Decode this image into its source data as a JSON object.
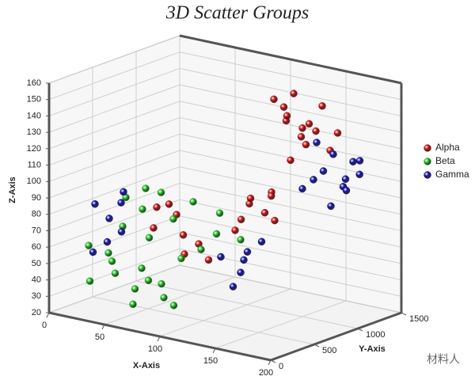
{
  "chart_data": {
    "type": "scatter3d",
    "title": "3D Scatter Groups",
    "x_label": "X-Axis",
    "y_label": "Y-Axis",
    "z_label": "Z-Axis",
    "xlim": [
      0,
      200
    ],
    "xticks": [
      0,
      50,
      100,
      150,
      200
    ],
    "ylim": [
      0,
      1500
    ],
    "yticks": [
      0,
      500,
      1000,
      1500
    ],
    "zlim": [
      20,
      160
    ],
    "zticks": [
      20,
      30,
      40,
      50,
      60,
      70,
      80,
      90,
      100,
      110,
      120,
      130,
      140,
      150,
      160
    ],
    "grid": true,
    "legend": "right",
    "watermark": "材料人",
    "series": [
      {
        "name": "Alpha",
        "color": "#cc1111",
        "x": [
          140,
          145,
          150,
          155,
          160,
          150,
          165,
          170,
          145,
          160,
          175,
          155,
          170,
          140,
          110,
          120,
          115,
          125,
          105,
          130,
          118,
          112,
          50,
          60,
          55,
          70,
          65,
          80,
          75,
          85
        ],
        "y": [
          800,
          850,
          900,
          750,
          950,
          1000,
          850,
          900,
          1050,
          1100,
          1000,
          800,
          1150,
          950,
          900,
          950,
          850,
          1000,
          800,
          900,
          1050,
          780,
          600,
          700,
          500,
          650,
          550,
          700,
          600,
          750
        ],
        "z": [
          155,
          150,
          158,
          145,
          140,
          135,
          130,
          138,
          128,
          148,
          125,
          120,
          132,
          142,
          85,
          80,
          90,
          75,
          70,
          95,
          88,
          78,
          80,
          75,
          70,
          65,
          85,
          60,
          55,
          50
        ]
      },
      {
        "name": "Beta",
        "color": "#22bb22",
        "x": [
          20,
          30,
          25,
          40,
          35,
          50,
          45,
          60,
          55,
          70,
          65,
          80,
          75,
          90,
          85,
          100,
          95,
          40,
          30,
          60,
          50,
          70,
          110,
          45,
          80
        ],
        "y": [
          200,
          300,
          150,
          250,
          400,
          350,
          500,
          300,
          450,
          400,
          600,
          500,
          700,
          600,
          350,
          650,
          750,
          600,
          500,
          200,
          650,
          250,
          800,
          150,
          300
        ],
        "z": [
          60,
          55,
          40,
          45,
          70,
          35,
          80,
          50,
          65,
          40,
          75,
          55,
          85,
          60,
          30,
          70,
          80,
          90,
          85,
          30,
          88,
          45,
          65,
          55,
          35
        ]
      },
      {
        "name": "Gamma",
        "color": "#1111aa",
        "x": [
          165,
          170,
          160,
          175,
          180,
          155,
          185,
          170,
          190,
          160,
          150,
          178,
          10,
          15,
          20,
          25,
          10,
          30,
          20,
          100,
          110,
          120,
          105,
          115,
          125
        ],
        "y": [
          1050,
          1100,
          1000,
          1150,
          1200,
          1100,
          1050,
          1250,
          1150,
          1200,
          1000,
          1300,
          400,
          500,
          600,
          350,
          700,
          450,
          250,
          700,
          800,
          750,
          900,
          650,
          850
        ],
        "z": [
          110,
          120,
          105,
          100,
          115,
          125,
          108,
          95,
          118,
          85,
          98,
          105,
          80,
          70,
          85,
          60,
          75,
          65,
          55,
          55,
          45,
          60,
          50,
          40,
          65
        ]
      }
    ]
  }
}
